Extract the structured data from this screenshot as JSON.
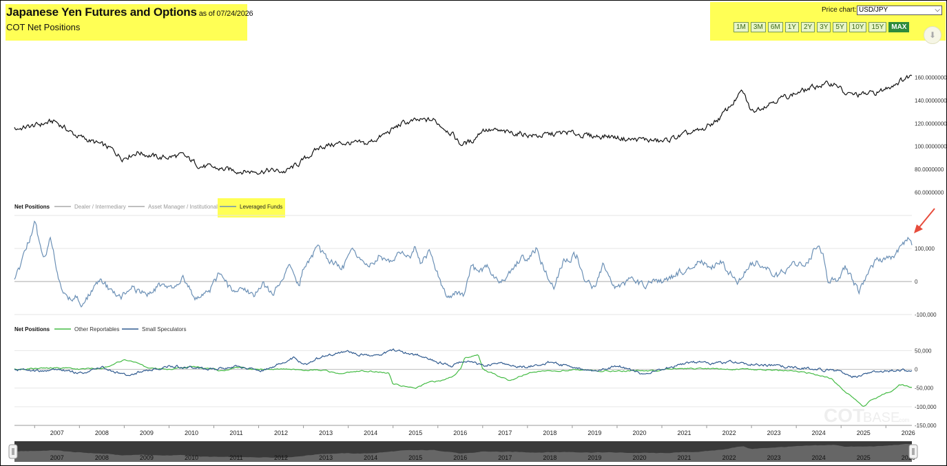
{
  "header": {
    "title": "Japanese Yen Futures and Options",
    "as_of": "as of 07/24/2026",
    "subtitle": "COT Net Positions"
  },
  "controls": {
    "price_chart_label": "Price chart:",
    "price_chart_value": "USD/JPY",
    "ranges": [
      "1M",
      "3M",
      "6M",
      "1Y",
      "2Y",
      "3Y",
      "5Y",
      "10Y",
      "15Y",
      "MAX"
    ],
    "active_range": "MAX",
    "download_icon": "download-icon"
  },
  "watermark": {
    "text1": "COT",
    "text2": "BASE",
    "text3": ".com"
  },
  "colors": {
    "price": "#111111",
    "leveraged": "#6a8fb5",
    "other": "#44bb44",
    "small": "#2f5a8f",
    "highlight": "#ffff55",
    "arrow": "#e74c3c",
    "navigator_fill": "#555555"
  },
  "chart_data": [
    {
      "type": "line",
      "title": "",
      "series": [
        {
          "name": "USD/JPY",
          "x": [
            2006.55,
            2007.0,
            2007.45,
            2007.9,
            2008.3,
            2008.7,
            2008.95,
            2009.3,
            2009.8,
            2010.3,
            2010.7,
            2011.2,
            2011.8,
            2012.2,
            2012.6,
            2012.9,
            2013.4,
            2013.9,
            2014.4,
            2014.8,
            2015.2,
            2015.5,
            2015.9,
            2016.3,
            2016.5,
            2016.75,
            2017.0,
            2017.5,
            2017.9,
            2018.2,
            2018.9,
            2019.4,
            2019.8,
            2020.3,
            2020.6,
            2021.0,
            2021.5,
            2021.9,
            2022.3,
            2022.8,
            2023.0,
            2023.5,
            2023.9,
            2024.5,
            2024.9,
            2025.1,
            2025.5,
            2025.9,
            2026.2,
            2026.58
          ],
          "y": [
            115,
            118,
            122,
            110,
            104,
            98,
            90,
            95,
            90,
            92,
            83,
            80,
            78,
            79,
            78,
            85,
            100,
            103,
            102,
            110,
            120,
            122,
            123,
            112,
            102,
            104,
            115,
            112,
            111,
            109,
            112,
            109,
            109,
            106,
            106,
            104,
            110,
            114,
            125,
            148,
            130,
            140,
            145,
            153,
            155,
            145,
            145,
            148,
            155,
            162
          ]
        }
      ],
      "ylim": [
        50,
        170
      ],
      "xlim": [
        2006.55,
        2026.58
      ],
      "y_ticks": [
        "60.0000000",
        "80.0000000",
        "100.0000000",
        "120.0000000",
        "140.0000000",
        "160.0000000"
      ],
      "grid": false
    },
    {
      "type": "line",
      "legend_title": "Net Positions",
      "legend": [
        "Dealer / Intermediary",
        "Asset Manager / Institutional",
        "Leveraged Funds"
      ],
      "legend_active": "Leveraged Funds",
      "series": [
        {
          "name": "Leveraged Funds",
          "x": [
            2006.55,
            2006.8,
            2007.0,
            2007.2,
            2007.35,
            2007.55,
            2007.75,
            2007.9,
            2008.1,
            2008.3,
            2008.5,
            2008.7,
            2008.9,
            2009.2,
            2009.5,
            2009.8,
            2010.0,
            2010.3,
            2010.6,
            2010.9,
            2011.1,
            2011.4,
            2011.6,
            2011.9,
            2012.1,
            2012.3,
            2012.5,
            2012.7,
            2012.9,
            2013.0,
            2013.3,
            2013.6,
            2013.9,
            2014.1,
            2014.4,
            2014.7,
            2014.9,
            2015.2,
            2015.4,
            2015.5,
            2015.6,
            2015.8,
            2016.0,
            2016.2,
            2016.4,
            2016.6,
            2016.75,
            2016.9,
            2017.1,
            2017.4,
            2017.6,
            2017.9,
            2018.0,
            2018.2,
            2018.4,
            2018.6,
            2018.8,
            2019.1,
            2019.3,
            2019.5,
            2019.7,
            2019.9,
            2020.1,
            2020.3,
            2020.5,
            2020.8,
            2021.0,
            2021.3,
            2021.6,
            2021.9,
            2022.1,
            2022.3,
            2022.5,
            2022.7,
            2022.9,
            2023.1,
            2023.3,
            2023.6,
            2023.9,
            2024.2,
            2024.5,
            2024.6,
            2024.7,
            2024.9,
            2025.1,
            2025.3,
            2025.4,
            2025.6,
            2025.8,
            2026.0,
            2026.2,
            2026.35,
            2026.5,
            2026.58
          ],
          "y": [
            0,
            90,
            180,
            60,
            140,
            0,
            -60,
            -40,
            -70,
            -20,
            0,
            -30,
            -50,
            -20,
            -40,
            -10,
            -20,
            10,
            -50,
            -30,
            20,
            -30,
            -10,
            -40,
            -10,
            -40,
            0,
            60,
            -20,
            40,
            100,
            60,
            50,
            90,
            40,
            80,
            60,
            100,
            80,
            110,
            60,
            90,
            20,
            -50,
            -30,
            -40,
            60,
            20,
            40,
            0,
            20,
            80,
            60,
            100,
            30,
            -10,
            60,
            80,
            0,
            -20,
            50,
            -20,
            -20,
            10,
            -10,
            0,
            0,
            20,
            40,
            60,
            40,
            60,
            30,
            0,
            40,
            60,
            50,
            20,
            50,
            60,
            110,
            80,
            10,
            0,
            40,
            -10,
            -30,
            20,
            70,
            60,
            80,
            110,
            130,
            110
          ]
        }
      ],
      "ylim": [
        -100000,
        200000
      ],
      "y_ticks": [
        "-100,000",
        "0",
        "100,000"
      ],
      "annotation": "red-arrow-pointing-to-latest-peak"
    },
    {
      "type": "line",
      "legend_title": "Net Positions",
      "series": [
        {
          "name": "Other Reportables",
          "x": [
            2006.55,
            2007.5,
            2008.0,
            2008.5,
            2008.7,
            2009.0,
            2009.2,
            2009.5,
            2010.0,
            2010.5,
            2011.0,
            2011.2,
            2011.5,
            2012.0,
            2012.4,
            2012.9,
            2013.0,
            2013.3,
            2013.8,
            2014.3,
            2014.9,
            2015.0,
            2015.5,
            2015.8,
            2016.1,
            2016.3,
            2016.5,
            2016.6,
            2016.9,
            2017.0,
            2017.3,
            2017.6,
            2018.0,
            2018.3,
            2018.9,
            2019.5,
            2020.0,
            2020.4,
            2020.9,
            2021.0,
            2021.5,
            2022.0,
            2022.5,
            2023.0,
            2023.5,
            2023.9,
            2024.2,
            2024.5,
            2024.8,
            2025.0,
            2025.3,
            2025.5,
            2025.7,
            2025.9,
            2026.1,
            2026.3,
            2026.45,
            2026.58
          ],
          "y": [
            0,
            5000,
            0,
            3000,
            10000,
            25000,
            20000,
            5000,
            0,
            8000,
            0,
            -5000,
            5000,
            0,
            2000,
            0,
            -5000,
            0,
            -10000,
            -3000,
            -10000,
            -40000,
            -50000,
            -35000,
            -30000,
            -20000,
            0,
            30000,
            40000,
            0,
            -15000,
            -30000,
            -10000,
            -5000,
            -2000,
            -3000,
            -5000,
            -3000,
            -5000,
            0,
            2000,
            3000,
            1000,
            0,
            -2000,
            -5000,
            -8000,
            -15000,
            -25000,
            -50000,
            -80000,
            -100000,
            -80000,
            -70000,
            -60000,
            -40000,
            -45000,
            -50000
          ]
        },
        {
          "name": "Small Speculators",
          "x": [
            2006.55,
            2007.0,
            2007.5,
            2008.0,
            2008.5,
            2009.0,
            2009.5,
            2010.0,
            2010.5,
            2011.0,
            2011.5,
            2012.0,
            2012.3,
            2012.5,
            2012.8,
            2013.0,
            2013.5,
            2014.0,
            2014.5,
            2015.0,
            2015.4,
            2015.7,
            2016.0,
            2016.3,
            2016.6,
            2017.0,
            2017.5,
            2018.0,
            2018.5,
            2019.0,
            2019.5,
            2020.0,
            2020.5,
            2021.0,
            2021.3,
            2021.7,
            2022.0,
            2022.5,
            2023.0,
            2023.5,
            2024.0,
            2024.5,
            2025.0,
            2025.3,
            2025.6,
            2026.0,
            2026.3,
            2026.58
          ],
          "y": [
            0,
            -5000,
            0,
            -10000,
            5000,
            -15000,
            -5000,
            10000,
            5000,
            0,
            10000,
            -5000,
            5000,
            20000,
            30000,
            10000,
            40000,
            45000,
            35000,
            50000,
            40000,
            35000,
            20000,
            10000,
            25000,
            10000,
            15000,
            5000,
            20000,
            5000,
            -5000,
            10000,
            -10000,
            0,
            10000,
            20000,
            15000,
            20000,
            15000,
            10000,
            5000,
            0,
            -5000,
            -20000,
            -10000,
            -5000,
            0,
            -5000
          ]
        }
      ],
      "ylim": [
        -150000,
        60000
      ],
      "y_ticks": [
        "-150,000",
        "-100,000",
        "-50,000",
        "0",
        "50,000"
      ]
    }
  ],
  "x_axis": {
    "years": [
      "2007",
      "2008",
      "2009",
      "2010",
      "2011",
      "2012",
      "2013",
      "2014",
      "2015",
      "2016",
      "2017",
      "2018",
      "2019",
      "2020",
      "2021",
      "2022",
      "2023",
      "2024",
      "2025",
      "2026"
    ]
  },
  "navigator": {
    "years": [
      "2007",
      "2008",
      "2009",
      "2010",
      "2011",
      "2012",
      "2013",
      "2014",
      "2015",
      "2016",
      "2017",
      "2018",
      "2019",
      "2020",
      "2021",
      "2022",
      "2023",
      "2024",
      "2025",
      "2026"
    ],
    "handle_left_icon": "drag-handle-icon",
    "handle_right_icon": "drag-handle-icon"
  }
}
